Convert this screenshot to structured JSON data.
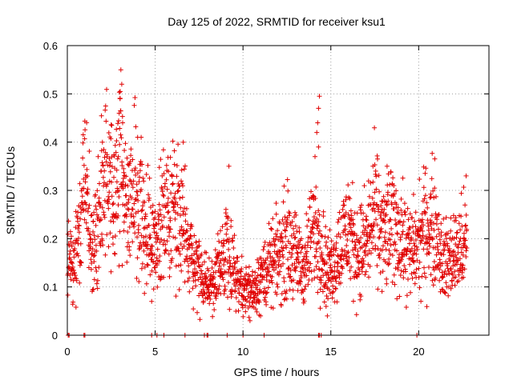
{
  "chart_data": {
    "type": "scatter",
    "title": "Day 125 of 2022, SRMTID for receiver ksu1",
    "xlabel": "GPS time / hours",
    "ylabel": "SRMTID / TECUs",
    "xlim": [
      0,
      24
    ],
    "ylim": [
      0,
      0.6
    ],
    "xticks": [
      0,
      5,
      10,
      15,
      20
    ],
    "xtick_labels": [
      "0",
      "5",
      "10",
      "15",
      "20"
    ],
    "yticks": [
      0,
      0.1,
      0.2,
      0.3,
      0.4,
      0.5,
      0.6
    ],
    "ytick_labels": [
      "0",
      "0.1",
      "0.2",
      "0.3",
      "0.4",
      "0.5",
      "0.6"
    ],
    "grid": true,
    "marker": "+",
    "color": "#e00000",
    "series": [
      {
        "name": "SRMTID",
        "profile": [
          {
            "x": 0.0,
            "y": 0.15
          },
          {
            "x": 0.3,
            "y": 0.13
          },
          {
            "x": 0.7,
            "y": 0.22
          },
          {
            "x": 1.0,
            "y": 0.32
          },
          {
            "x": 1.4,
            "y": 0.17
          },
          {
            "x": 1.8,
            "y": 0.25
          },
          {
            "x": 2.2,
            "y": 0.33
          },
          {
            "x": 2.6,
            "y": 0.28
          },
          {
            "x": 3.0,
            "y": 0.34
          },
          {
            "x": 3.4,
            "y": 0.27
          },
          {
            "x": 3.8,
            "y": 0.3
          },
          {
            "x": 4.2,
            "y": 0.25
          },
          {
            "x": 4.6,
            "y": 0.22
          },
          {
            "x": 5.0,
            "y": 0.17
          },
          {
            "x": 5.4,
            "y": 0.27
          },
          {
            "x": 5.8,
            "y": 0.25
          },
          {
            "x": 6.3,
            "y": 0.28
          },
          {
            "x": 6.8,
            "y": 0.18
          },
          {
            "x": 7.3,
            "y": 0.15
          },
          {
            "x": 7.8,
            "y": 0.1
          },
          {
            "x": 8.3,
            "y": 0.11
          },
          {
            "x": 8.8,
            "y": 0.14
          },
          {
            "x": 9.1,
            "y": 0.2
          },
          {
            "x": 9.5,
            "y": 0.13
          },
          {
            "x": 10.0,
            "y": 0.1
          },
          {
            "x": 10.5,
            "y": 0.09
          },
          {
            "x": 11.0,
            "y": 0.12
          },
          {
            "x": 11.5,
            "y": 0.14
          },
          {
            "x": 12.0,
            "y": 0.16
          },
          {
            "x": 12.5,
            "y": 0.2
          },
          {
            "x": 13.0,
            "y": 0.16
          },
          {
            "x": 13.5,
            "y": 0.14
          },
          {
            "x": 14.0,
            "y": 0.22
          },
          {
            "x": 14.4,
            "y": 0.2
          },
          {
            "x": 14.8,
            "y": 0.13
          },
          {
            "x": 15.2,
            "y": 0.15
          },
          {
            "x": 15.6,
            "y": 0.19
          },
          {
            "x": 16.0,
            "y": 0.22
          },
          {
            "x": 16.5,
            "y": 0.17
          },
          {
            "x": 17.0,
            "y": 0.19
          },
          {
            "x": 17.5,
            "y": 0.25
          },
          {
            "x": 18.0,
            "y": 0.2
          },
          {
            "x": 18.5,
            "y": 0.23
          },
          {
            "x": 19.0,
            "y": 0.2
          },
          {
            "x": 19.5,
            "y": 0.17
          },
          {
            "x": 20.0,
            "y": 0.19
          },
          {
            "x": 20.5,
            "y": 0.23
          },
          {
            "x": 21.0,
            "y": 0.22
          },
          {
            "x": 21.4,
            "y": 0.15
          },
          {
            "x": 21.8,
            "y": 0.16
          },
          {
            "x": 22.2,
            "y": 0.17
          },
          {
            "x": 22.7,
            "y": 0.19
          }
        ],
        "peaks": [
          {
            "x": 3.05,
            "y": 0.55
          },
          {
            "x": 3.1,
            "y": 0.52
          },
          {
            "x": 3.0,
            "y": 0.49
          },
          {
            "x": 2.95,
            "y": 0.46
          },
          {
            "x": 3.15,
            "y": 0.44
          },
          {
            "x": 4.0,
            "y": 0.41
          },
          {
            "x": 4.2,
            "y": 0.41
          },
          {
            "x": 14.35,
            "y": 0.495
          },
          {
            "x": 14.3,
            "y": 0.47
          },
          {
            "x": 14.25,
            "y": 0.44
          },
          {
            "x": 14.2,
            "y": 0.42
          },
          {
            "x": 14.3,
            "y": 0.39
          },
          {
            "x": 14.1,
            "y": 0.37
          },
          {
            "x": 6.6,
            "y": 0.4
          },
          {
            "x": 2.0,
            "y": 0.4
          },
          {
            "x": 9.2,
            "y": 0.35
          },
          {
            "x": 17.4,
            "y": 0.35
          },
          {
            "x": 18.2,
            "y": 0.35
          },
          {
            "x": 22.7,
            "y": 0.33
          },
          {
            "x": 10.4,
            "y": 0.03
          },
          {
            "x": 11.0,
            "y": 0.04
          },
          {
            "x": 4.8,
            "y": 0.07
          },
          {
            "x": 14.8,
            "y": 0.04
          }
        ],
        "zero_points": [
          0.05,
          0.1,
          0.95,
          1.0,
          4.8,
          5.1,
          5.5,
          6.7,
          7.8,
          7.95,
          8.0,
          9.1,
          10.0,
          11.2,
          14.3,
          14.35,
          14.45,
          19.9
        ]
      }
    ]
  }
}
